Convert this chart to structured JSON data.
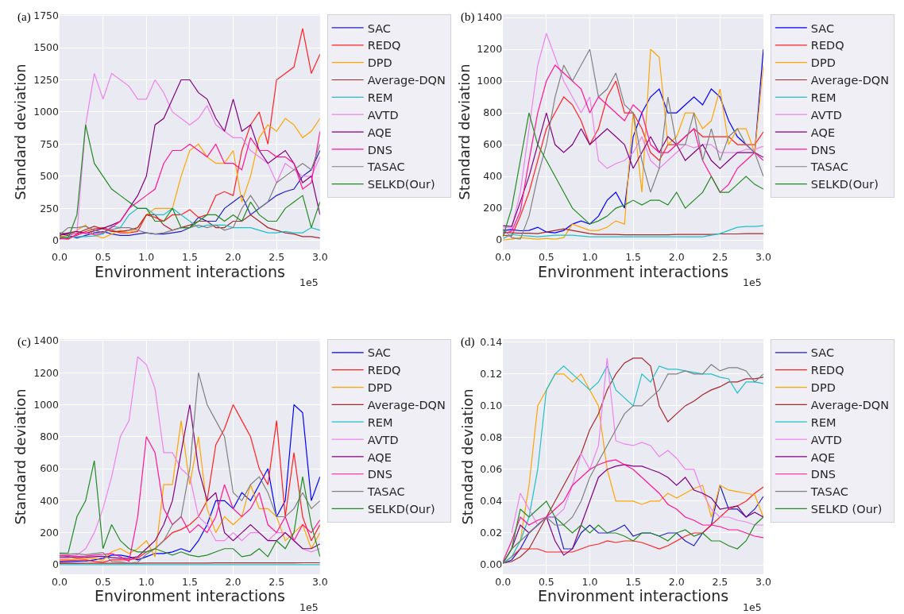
{
  "chart_data": [
    {
      "type": "line",
      "xlabel": "Environment interactions",
      "ylabel": "Standard deviation",
      "annotations": [
        "(a)",
        "1e5"
      ],
      "grid": true,
      "legend": "right",
      "x": [
        0,
        0.1,
        0.2,
        0.3,
        0.4,
        0.5,
        0.6,
        0.7,
        0.8,
        0.9,
        1.0,
        1.1,
        1.2,
        1.3,
        1.4,
        1.5,
        1.6,
        1.7,
        1.8,
        1.9,
        2.0,
        2.1,
        2.2,
        2.3,
        2.4,
        2.5,
        2.6,
        2.7,
        2.8,
        2.9,
        3.0
      ],
      "xlim": [
        0,
        3
      ],
      "xticks": [
        {
          "value": 0,
          "label": "0.0"
        },
        0.5,
        {
          "value": 1,
          "label": "1.0"
        },
        1.5,
        {
          "value": 2,
          "label": "2.0"
        },
        2.5,
        {
          "value": 3,
          "label": "3.0"
        }
      ],
      "ylim": [
        -70,
        1760
      ],
      "yticks": [
        0,
        250,
        500,
        750,
        1000,
        1250,
        1500,
        1750
      ],
      "series": [
        {
          "name": "SAC",
          "color": "#2020c0",
          "values": [
            50,
            40,
            20,
            40,
            60,
            70,
            50,
            40,
            40,
            50,
            60,
            50,
            50,
            60,
            70,
            100,
            180,
            150,
            150,
            250,
            300,
            350,
            200,
            250,
            300,
            350,
            380,
            400,
            500,
            550,
            700
          ]
        },
        {
          "name": "REDQ",
          "color": "#ff2020",
          "values": [
            20,
            15,
            40,
            70,
            90,
            100,
            80,
            60,
            60,
            70,
            200,
            180,
            150,
            200,
            200,
            240,
            180,
            200,
            350,
            380,
            350,
            700,
            900,
            1000,
            750,
            1250,
            1300,
            1350,
            1650,
            1300,
            1450
          ]
        },
        {
          "name": "DPD",
          "color": "#ffa500",
          "values": [
            35,
            30,
            80,
            120,
            40,
            20,
            50,
            80,
            60,
            100,
            200,
            250,
            250,
            250,
            500,
            700,
            750,
            650,
            600,
            600,
            700,
            300,
            500,
            800,
            900,
            850,
            950,
            900,
            800,
            850,
            950
          ]
        },
        {
          "name": "Average-DQN",
          "color": "#a52a2a",
          "values": [
            60,
            50,
            55,
            85,
            110,
            90,
            70,
            70,
            80,
            100,
            200,
            200,
            120,
            80,
            100,
            120,
            150,
            150,
            100,
            100,
            150,
            150,
            200,
            150,
            100,
            80,
            60,
            50,
            30,
            30,
            20
          ]
        },
        {
          "name": "REM",
          "color": "#20c0c8",
          "values": [
            10,
            25,
            30,
            30,
            35,
            50,
            110,
            100,
            200,
            250,
            250,
            200,
            200,
            250,
            200,
            150,
            100,
            120,
            120,
            120,
            100,
            100,
            100,
            80,
            60,
            60,
            70,
            60,
            60,
            100,
            80
          ]
        },
        {
          "name": "AVTD",
          "color": "#ee82ee",
          "values": [
            null,
            35,
            60,
            900,
            1300,
            1100,
            1300,
            1250,
            1200,
            1100,
            1100,
            1250,
            1150,
            1000,
            950,
            900,
            950,
            1050,
            900,
            850,
            800,
            800,
            700,
            650,
            600,
            450,
            600,
            550,
            500,
            500,
            650
          ]
        },
        {
          "name": "AQE",
          "color": "#800080",
          "values": [
            40,
            60,
            70,
            55,
            75,
            95,
            120,
            150,
            250,
            350,
            500,
            900,
            950,
            1100,
            1250,
            1250,
            1150,
            1100,
            950,
            850,
            1100,
            850,
            900,
            700,
            600,
            650,
            700,
            600,
            450,
            500,
            200
          ]
        },
        {
          "name": "DNS",
          "color": "#ff1493",
          "values": [
            15,
            10,
            50,
            60,
            45,
            60,
            100,
            150,
            250,
            300,
            350,
            400,
            600,
            700,
            700,
            750,
            700,
            650,
            750,
            600,
            600,
            550,
            800,
            700,
            700,
            650,
            650,
            600,
            400,
            450,
            850
          ]
        },
        {
          "name": "TASAC",
          "color": "#808080",
          "values": [
            45,
            100,
            100,
            110,
            80,
            65,
            85,
            100,
            100,
            80,
            60,
            50,
            60,
            80,
            100,
            100,
            120,
            100,
            120,
            80,
            100,
            250,
            350,
            250,
            300,
            450,
            500,
            550,
            600,
            550,
            750
          ]
        },
        {
          "name": "SELKD(Our)",
          "color": "#228b22",
          "values": [
            30,
            20,
            200,
            900,
            600,
            500,
            400,
            350,
            300,
            250,
            250,
            150,
            150,
            250,
            100,
            100,
            150,
            200,
            200,
            150,
            200,
            150,
            300,
            200,
            150,
            150,
            250,
            300,
            350,
            100,
            300
          ]
        }
      ]
    },
    {
      "type": "line",
      "xlabel": "Environment interactions",
      "ylabel": "Standard deviation",
      "annotations": [
        "(b)",
        "1e5"
      ],
      "grid": true,
      "legend": "right",
      "x": [
        0,
        0.1,
        0.2,
        0.3,
        0.4,
        0.5,
        0.6,
        0.7,
        0.8,
        0.9,
        1.0,
        1.1,
        1.2,
        1.3,
        1.4,
        1.5,
        1.6,
        1.7,
        1.8,
        1.9,
        2.0,
        2.1,
        2.2,
        2.3,
        2.4,
        2.5,
        2.6,
        2.7,
        2.8,
        2.9,
        3.0
      ],
      "xlim": [
        0,
        3
      ],
      "xticks": [
        {
          "value": 0,
          "label": "0.0"
        },
        0.5,
        {
          "value": 1,
          "label": "1.0"
        },
        1.5,
        {
          "value": 2,
          "label": "2.0"
        },
        2.5,
        {
          "value": 3,
          "label": "3.0"
        }
      ],
      "ylim": [
        -60,
        1420
      ],
      "yticks": [
        0,
        200,
        400,
        600,
        800,
        1000,
        1200,
        1400
      ],
      "series": [
        {
          "name": "SAC",
          "color": "#0000ff",
          "values": [
            60,
            65,
            58,
            60,
            80,
            50,
            45,
            60,
            100,
            120,
            100,
            150,
            250,
            300,
            200,
            650,
            800,
            900,
            950,
            800,
            800,
            850,
            900,
            850,
            950,
            900,
            750,
            650,
            600,
            550,
            1200
          ]
        },
        {
          "name": "REDQ",
          "color": "#ff2020",
          "values": [
            30,
            25,
            150,
            300,
            500,
            700,
            800,
            900,
            850,
            750,
            600,
            700,
            900,
            1000,
            800,
            800,
            700,
            550,
            500,
            600,
            600,
            650,
            700,
            650,
            650,
            650,
            650,
            600,
            600,
            600,
            680
          ]
        },
        {
          "name": "DPD",
          "color": "#ffa500",
          "values": [
            0,
            5,
            15,
            10,
            5,
            10,
            5,
            15,
            100,
            80,
            60,
            60,
            80,
            120,
            100,
            800,
            300,
            1200,
            1150,
            600,
            650,
            800,
            800,
            700,
            750,
            950,
            600,
            700,
            700,
            550,
            1100
          ]
        },
        {
          "name": "Average-DQN",
          "color": "#a52a2a",
          "values": [
            50,
            45,
            42,
            42,
            40,
            50,
            60,
            70,
            60,
            50,
            40,
            35,
            35,
            35,
            32,
            32,
            32,
            32,
            32,
            32,
            35,
            35,
            35,
            35,
            35,
            38,
            38,
            38,
            40,
            40,
            40
          ]
        },
        {
          "name": "REM",
          "color": "#20c0c8",
          "values": [
            10,
            35,
            28,
            25,
            20,
            25,
            30,
            30,
            30,
            25,
            20,
            20,
            20,
            20,
            20,
            20,
            20,
            20,
            20,
            20,
            20,
            20,
            20,
            20,
            30,
            40,
            60,
            80,
            85,
            85,
            90
          ]
        },
        {
          "name": "AVTD",
          "color": "#ee82ee",
          "values": [
            80,
            75,
            300,
            700,
            1100,
            1300,
            1150,
            1000,
            900,
            800,
            900,
            500,
            450,
            480,
            500,
            550,
            650,
            500,
            450,
            500,
            550,
            600,
            580,
            600,
            600,
            550,
            550,
            550,
            570,
            570,
            590
          ]
        },
        {
          "name": "AQE",
          "color": "#800080",
          "values": [
            90,
            85,
            240,
            400,
            600,
            800,
            600,
            550,
            600,
            700,
            600,
            650,
            700,
            650,
            600,
            450,
            550,
            650,
            550,
            650,
            600,
            500,
            550,
            600,
            500,
            450,
            500,
            550,
            550,
            550,
            520
          ]
        },
        {
          "name": "DNS",
          "color": "#ff1493",
          "values": [
            40,
            55,
            180,
            500,
            800,
            1000,
            1100,
            1050,
            1000,
            950,
            800,
            900,
            850,
            800,
            750,
            850,
            800,
            600,
            550,
            550,
            600,
            650,
            700,
            500,
            400,
            300,
            350,
            450,
            500,
            550,
            500
          ]
        },
        {
          "name": "TASAC",
          "color": "#808080",
          "values": [
            70,
            15,
            5,
            150,
            400,
            600,
            900,
            1100,
            1000,
            1100,
            1200,
            900,
            950,
            1050,
            850,
            800,
            500,
            300,
            450,
            900,
            600,
            600,
            800,
            500,
            700,
            500,
            650,
            700,
            600,
            550,
            400
          ]
        },
        {
          "name": "SELKD(Our)",
          "color": "#228b22",
          "values": [
            20,
            200,
            500,
            800,
            600,
            500,
            400,
            300,
            200,
            150,
            100,
            120,
            150,
            200,
            220,
            250,
            220,
            250,
            250,
            220,
            300,
            200,
            250,
            300,
            400,
            300,
            300,
            350,
            400,
            350,
            320
          ]
        }
      ]
    },
    {
      "type": "line",
      "xlabel": "Environment interactions",
      "ylabel": "Standard deviation",
      "annotations": [
        "(c)",
        "1e5"
      ],
      "grid": true,
      "legend": "right",
      "x": [
        0,
        0.1,
        0.2,
        0.3,
        0.4,
        0.5,
        0.6,
        0.7,
        0.8,
        0.9,
        1.0,
        1.1,
        1.2,
        1.3,
        1.4,
        1.5,
        1.6,
        1.7,
        1.8,
        1.9,
        2.0,
        2.1,
        2.2,
        2.3,
        2.4,
        2.5,
        2.6,
        2.7,
        2.8,
        2.9,
        3.0
      ],
      "xlim": [
        0,
        3
      ],
      "xticks": [
        {
          "value": 0,
          "label": "0.0"
        },
        0.5,
        {
          "value": 1,
          "label": "1.0"
        },
        1.5,
        {
          "value": 2,
          "label": "2.0"
        },
        2.5,
        {
          "value": 3,
          "label": "3.0"
        }
      ],
      "ylim": [
        -60,
        1410
      ],
      "yticks": [
        0,
        200,
        400,
        600,
        800,
        1000,
        1200,
        1400
      ],
      "series": [
        {
          "name": "SAC",
          "color": "#0000ff",
          "values": [
            16,
            18,
            20,
            22,
            30,
            40,
            60,
            60,
            50,
            30,
            50,
            70,
            70,
            80,
            100,
            80,
            150,
            250,
            400,
            400,
            350,
            450,
            400,
            500,
            600,
            300,
            400,
            1000,
            950,
            400,
            550
          ]
        },
        {
          "name": "REDQ",
          "color": "#ff2020",
          "values": [
            24,
            26,
            28,
            30,
            20,
            15,
            30,
            30,
            30,
            40,
            80,
            100,
            150,
            200,
            220,
            250,
            300,
            400,
            750,
            850,
            1000,
            900,
            800,
            600,
            500,
            900,
            300,
            700,
            300,
            150,
            250
          ]
        },
        {
          "name": "DPD",
          "color": "#ffa500",
          "values": [
            32,
            34,
            36,
            38,
            40,
            28,
            80,
            100,
            70,
            100,
            150,
            50,
            500,
            500,
            900,
            500,
            800,
            350,
            200,
            300,
            250,
            300,
            500,
            350,
            350,
            300,
            150,
            200,
            250,
            100,
            200
          ]
        },
        {
          "name": "Average-DQN",
          "color": "#a52a2a",
          "values": [
            8,
            8,
            8,
            9,
            9,
            9,
            9,
            9,
            9,
            9,
            10,
            10,
            10,
            10,
            10,
            10,
            10,
            10,
            11,
            11,
            11,
            11,
            11,
            11,
            11,
            11,
            11,
            11,
            12,
            12,
            12
          ]
        },
        {
          "name": "REM",
          "color": "#20c0c8",
          "values": [
            0,
            0,
            0,
            0,
            0,
            0,
            0,
            0,
            0,
            0,
            0,
            0,
            0,
            0,
            0,
            0,
            0,
            0,
            0,
            0,
            0,
            0,
            0,
            0,
            0,
            0,
            0,
            0,
            0,
            0,
            0
          ]
        },
        {
          "name": "AVTD",
          "color": "#ee82ee",
          "values": [
            40,
            42,
            60,
            100,
            200,
            350,
            550,
            800,
            900,
            1300,
            1250,
            1100,
            700,
            700,
            600,
            550,
            300,
            250,
            150,
            150,
            200,
            150,
            200,
            200,
            150,
            200,
            200,
            150,
            100,
            80,
            100
          ]
        },
        {
          "name": "AQE",
          "color": "#800080",
          "values": [
            48,
            50,
            44,
            46,
            50,
            52,
            45,
            40,
            40,
            50,
            100,
            150,
            250,
            400,
            700,
            1000,
            600,
            400,
            450,
            200,
            150,
            200,
            250,
            200,
            150,
            150,
            200,
            150,
            100,
            100,
            130
          ]
        },
        {
          "name": "DNS",
          "color": "#ff1493",
          "values": [
            56,
            58,
            52,
            54,
            60,
            64,
            70,
            50,
            20,
            300,
            800,
            700,
            350,
            250,
            300,
            200,
            250,
            200,
            300,
            500,
            350,
            300,
            350,
            450,
            250,
            200,
            300,
            150,
            250,
            200,
            280
          ]
        },
        {
          "name": "TASAC",
          "color": "#808080",
          "values": [
            64,
            66,
            68,
            62,
            70,
            76,
            20,
            18,
            10,
            15,
            65,
            100,
            150,
            250,
            300,
            600,
            1200,
            1000,
            900,
            800,
            450,
            400,
            500,
            550,
            450,
            300,
            300,
            350,
            450,
            350,
            400
          ]
        },
        {
          "name": "SELKD(Our)",
          "color": "#228b22",
          "values": [
            72,
            74,
            300,
            400,
            650,
            100,
            250,
            150,
            100,
            80,
            80,
            100,
            80,
            60,
            80,
            60,
            50,
            60,
            80,
            100,
            100,
            50,
            60,
            100,
            50,
            150,
            100,
            200,
            550,
            250,
            50
          ]
        }
      ]
    },
    {
      "type": "line",
      "xlabel": "Environment interactions",
      "ylabel": "Standard deviation",
      "annotations": [
        "(d)",
        "1e5"
      ],
      "grid": true,
      "legend": "right",
      "x": [
        0,
        0.1,
        0.2,
        0.3,
        0.4,
        0.5,
        0.6,
        0.7,
        0.8,
        0.9,
        1.0,
        1.1,
        1.2,
        1.3,
        1.4,
        1.5,
        1.6,
        1.7,
        1.8,
        1.9,
        2.0,
        2.1,
        2.2,
        2.3,
        2.4,
        2.5,
        2.6,
        2.7,
        2.8,
        2.9,
        3.0
      ],
      "xlim": [
        0,
        3
      ],
      "xticks": [
        {
          "value": 0,
          "label": "0.0"
        },
        0.5,
        {
          "value": 1,
          "label": "1.0"
        },
        1.5,
        {
          "value": 2,
          "label": "2.0"
        },
        2.5,
        {
          "value": 3,
          "label": "3.0"
        }
      ],
      "ylim": [
        -0.006,
        0.142
      ],
      "yticks": [
        {
          "value": 0,
          "label": "0.00"
        },
        0.02,
        0.04,
        0.06,
        0.08,
        {
          "value": 0.1,
          "label": "0.10"
        },
        0.12,
        0.14
      ],
      "series": [
        {
          "name": "SAC",
          "color": "#2020c0",
          "values": [
            0.001,
            0.003,
            0.01,
            0.02,
            0.025,
            0.03,
            0.03,
            0.01,
            0.01,
            0.02,
            0.025,
            0.02,
            0.02,
            0.022,
            0.025,
            0.018,
            0.02,
            0.02,
            0.018,
            0.02,
            0.02,
            0.015,
            0.012,
            0.02,
            0.025,
            0.05,
            0.035,
            0.035,
            0.03,
            0.035,
            0.043
          ]
        },
        {
          "name": "REDQ",
          "color": "#ff2020",
          "values": [
            0.001,
            0.005,
            0.01,
            0.01,
            0.01,
            0.008,
            0.008,
            0.008,
            0.008,
            0.01,
            0.012,
            0.013,
            0.015,
            0.014,
            0.015,
            0.015,
            0.014,
            0.012,
            0.01,
            0.012,
            0.015,
            0.018,
            0.02,
            0.02,
            0.025,
            0.03,
            0.035,
            0.037,
            0.04,
            0.045,
            0.049
          ]
        },
        {
          "name": "DPD",
          "color": "#ffa500",
          "values": [
            0.001,
            0.01,
            0.015,
            0.05,
            0.1,
            0.11,
            0.12,
            0.12,
            0.115,
            0.12,
            0.11,
            0.1,
            0.06,
            0.04,
            0.04,
            0.04,
            0.038,
            0.04,
            0.04,
            0.045,
            0.042,
            0.045,
            0.048,
            0.05,
            0.03,
            0.05,
            0.047,
            0.046,
            0.045,
            0.044,
            0.03
          ]
        },
        {
          "name": "Average-DQN",
          "color": "#a52a2a",
          "values": [
            0.001,
            0.002,
            0.005,
            0.01,
            0.02,
            0.03,
            0.04,
            0.05,
            0.06,
            0.07,
            0.085,
            0.095,
            0.11,
            0.12,
            0.127,
            0.13,
            0.13,
            0.125,
            0.1,
            0.09,
            0.095,
            0.1,
            0.103,
            0.107,
            0.11,
            0.112,
            0.115,
            0.115,
            0.117,
            0.117,
            0.118
          ]
        },
        {
          "name": "REM",
          "color": "#20c0c8",
          "values": [
            0.001,
            0.005,
            0.015,
            0.03,
            0.06,
            0.11,
            0.12,
            0.125,
            0.12,
            0.115,
            0.11,
            0.115,
            0.125,
            0.11,
            0.105,
            0.1,
            0.12,
            0.115,
            0.125,
            0.123,
            0.123,
            0.122,
            0.121,
            0.12,
            0.12,
            0.118,
            0.117,
            0.108,
            0.115,
            0.115,
            0.114
          ]
        },
        {
          "name": "AVTD",
          "color": "#ee82ee",
          "values": [
            null,
            0.02,
            0.045,
            0.035,
            0.025,
            0.03,
            0.03,
            0.035,
            0.05,
            0.07,
            0.06,
            0.075,
            0.13,
            0.078,
            0.076,
            0.075,
            0.077,
            0.075,
            0.068,
            0.072,
            0.067,
            0.06,
            0.06,
            0.045,
            0.035,
            0.03,
            0.03,
            0.028,
            0.027,
            0.025,
            0.025
          ]
        },
        {
          "name": "AQE",
          "color": "#800080",
          "values": [
            0.001,
            0.01,
            0.025,
            0.02,
            0.025,
            0.03,
            0.015,
            0.006,
            0.01,
            0.025,
            0.04,
            0.055,
            0.06,
            0.062,
            0.063,
            0.062,
            0.062,
            0.06,
            0.058,
            0.055,
            0.05,
            0.055,
            0.047,
            0.045,
            0.042,
            0.035,
            0.036,
            0.037,
            0.03,
            0.033,
            0.03
          ]
        },
        {
          "name": "DNS",
          "color": "#ff1493",
          "values": [
            0.002,
            0.015,
            0.03,
            0.025,
            0.028,
            0.03,
            0.035,
            0.04,
            0.05,
            0.055,
            0.06,
            0.063,
            0.065,
            0.066,
            0.063,
            0.06,
            0.055,
            0.05,
            0.045,
            0.038,
            0.035,
            0.03,
            0.028,
            0.025,
            0.025,
            0.024,
            0.022,
            0.022,
            0.02,
            0.018,
            0.017
          ]
        },
        {
          "name": "TASAC",
          "color": "#808080",
          "values": [
            0.001,
            0.01,
            0.015,
            0.02,
            0.025,
            0.03,
            0.025,
            0.025,
            0.03,
            0.04,
            0.055,
            0.065,
            0.075,
            0.085,
            0.095,
            0.1,
            0.1,
            0.105,
            0.11,
            0.12,
            0.12,
            0.122,
            0.12,
            0.12,
            0.126,
            0.122,
            0.124,
            0.124,
            0.122,
            0.115,
            0.12
          ]
        },
        {
          "name": "SELKD (Our)",
          "color": "#228b22",
          "values": [
            0.001,
            0.01,
            0.035,
            0.03,
            0.035,
            0.04,
            0.03,
            0.025,
            0.02,
            0.025,
            0.02,
            0.025,
            0.02,
            0.02,
            0.018,
            0.015,
            0.02,
            0.02,
            0.018,
            0.015,
            0.02,
            0.022,
            0.018,
            0.02,
            0.015,
            0.015,
            0.012,
            0.01,
            0.015,
            0.025,
            0.03
          ]
        }
      ]
    }
  ]
}
